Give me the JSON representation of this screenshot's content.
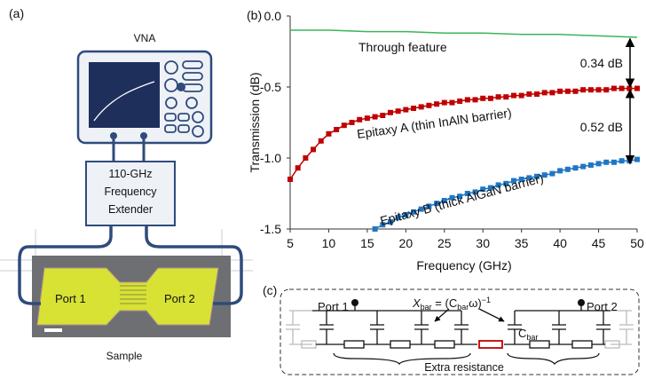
{
  "panel_labels": [
    "(a)",
    "(b)",
    "(c)"
  ],
  "diagram_a": {
    "instrument": "VNA",
    "extender": [
      "110-GHz",
      "Frequency",
      "Extender"
    ],
    "ports": [
      "Port 1",
      "Port 2"
    ],
    "caption": "Sample"
  },
  "circuit_c": {
    "port_left": "Port 1",
    "port_right": "Port 2",
    "reactance": {
      "symbol": "X",
      "symbol_sub": "bar",
      "eq": " = (C",
      "eq_sub": "bar",
      "eq_tail": "ω)",
      "eq_sup": "−1"
    },
    "capacitor": {
      "symbol": "C",
      "sub": "bar"
    },
    "brace_label": "Extra resistance"
  },
  "chart_data": {
    "type": "line",
    "xlabel": "Frequency (GHz)",
    "ylabel": "Transmission (dB)",
    "xlim": [
      5,
      50
    ],
    "ylim": [
      -1.5,
      0.0
    ],
    "xticks": [
      5,
      10,
      15,
      20,
      25,
      30,
      35,
      40,
      45,
      50
    ],
    "yticks": [
      {
        "value": -1.5,
        "label": "-1.5"
      },
      {
        "value": -1.0,
        "label": "-1.0"
      },
      {
        "value": -0.5,
        "label": "-0.5"
      },
      {
        "value": 0.0,
        "label": "0.0"
      }
    ],
    "series": [
      {
        "name": "Through feature",
        "color": "#3cb55a",
        "markers": false,
        "x": [
          5,
          10,
          15,
          20,
          25,
          30,
          35,
          40,
          45,
          50
        ],
        "values": [
          -0.1,
          -0.1,
          -0.11,
          -0.11,
          -0.12,
          -0.12,
          -0.13,
          -0.13,
          -0.14,
          -0.15
        ]
      },
      {
        "name": "Epitaxy A (thin InAlN barrier)",
        "color": "#c00000",
        "markers": true,
        "x": [
          5,
          6,
          7,
          8,
          9,
          10,
          11,
          12,
          13,
          14,
          15,
          16,
          17,
          18,
          19,
          20,
          21,
          22,
          23,
          24,
          25,
          26,
          27,
          28,
          29,
          30,
          31,
          32,
          33,
          34,
          35,
          36,
          37,
          38,
          39,
          40,
          41,
          42,
          43,
          44,
          45,
          46,
          47,
          48,
          49,
          50
        ],
        "values": [
          -1.15,
          -1.07,
          -1.0,
          -0.94,
          -0.88,
          -0.83,
          -0.8,
          -0.77,
          -0.75,
          -0.73,
          -0.72,
          -0.71,
          -0.7,
          -0.68,
          -0.67,
          -0.66,
          -0.65,
          -0.64,
          -0.63,
          -0.62,
          -0.61,
          -0.61,
          -0.6,
          -0.59,
          -0.59,
          -0.58,
          -0.58,
          -0.57,
          -0.57,
          -0.56,
          -0.56,
          -0.55,
          -0.55,
          -0.54,
          -0.54,
          -0.53,
          -0.53,
          -0.53,
          -0.52,
          -0.52,
          -0.52,
          -0.52,
          -0.51,
          -0.51,
          -0.51,
          -0.51
        ]
      },
      {
        "name": "Epitaxy B (thick AlGaN barrier)",
        "color": "#1f77c4",
        "markers": true,
        "x": [
          16,
          17,
          18,
          19,
          20,
          21,
          22,
          23,
          24,
          25,
          26,
          27,
          28,
          29,
          30,
          31,
          32,
          33,
          34,
          35,
          36,
          37,
          38,
          39,
          40,
          41,
          42,
          43,
          44,
          45,
          46,
          47,
          48,
          49,
          50
        ],
        "values": [
          -1.5,
          -1.47,
          -1.45,
          -1.42,
          -1.4,
          -1.38,
          -1.36,
          -1.34,
          -1.32,
          -1.3,
          -1.28,
          -1.27,
          -1.25,
          -1.24,
          -1.22,
          -1.21,
          -1.19,
          -1.18,
          -1.16,
          -1.15,
          -1.14,
          -1.13,
          -1.12,
          -1.11,
          -1.09,
          -1.08,
          -1.07,
          -1.06,
          -1.05,
          -1.04,
          -1.03,
          -1.03,
          -1.02,
          -1.02,
          -1.01
        ]
      }
    ],
    "annotations": [
      {
        "text": "0.34 dB",
        "from": -0.16,
        "to": -0.5
      },
      {
        "text": "0.52 dB",
        "from": -0.52,
        "to": -1.04
      }
    ]
  }
}
